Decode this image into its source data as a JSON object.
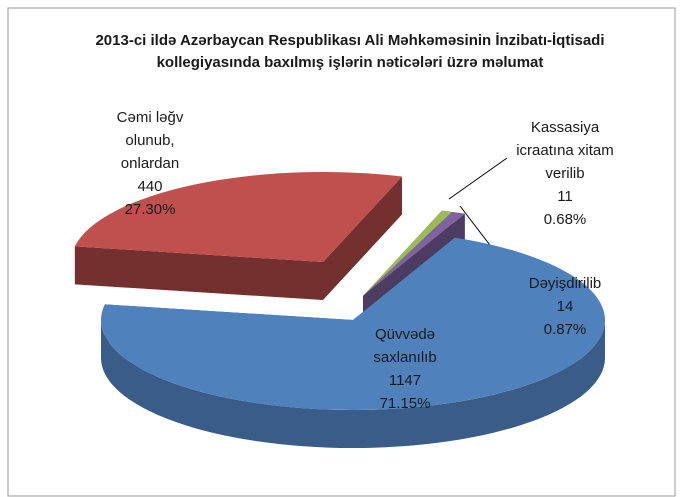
{
  "chart_data": {
    "type": "pie",
    "title": "2013-ci ildə Azərbaycan Respublikası Ali Məhkəməsinin İnzibatı-İqtisadi kollegiyasında  baxılmış işlərin nəticələri üzrə məlumat",
    "categories": [
      [
        "Cəmi  ləğv",
        "olunub,",
        "onlardan"
      ],
      [
        "Kassasiya",
        "icraatına xitam",
        "verilib"
      ],
      [
        "Dəyişdirilib"
      ],
      [
        "Qüvvədə",
        "saxlanılıb"
      ]
    ],
    "values": [
      440,
      11,
      14,
      1147
    ],
    "percentages": [
      {
        "value": 27.3,
        "label": "27.30%"
      },
      {
        "value": 0.68,
        "label": "0.68%"
      },
      {
        "value": 0.87,
        "label": "0.87%"
      },
      {
        "value": 71.15,
        "label": "71.15%"
      }
    ],
    "colors": [
      "#c0504d",
      "#9bbb59",
      "#8064a2",
      "#4f81bd"
    ],
    "three_d": true
  }
}
